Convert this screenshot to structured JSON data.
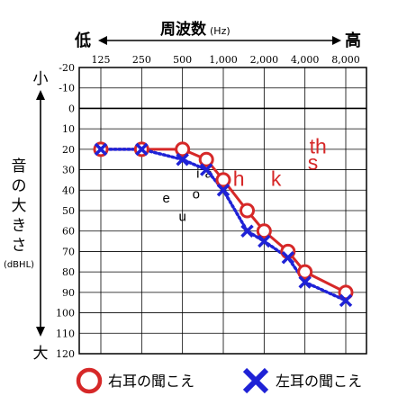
{
  "title_freq": "周波数",
  "title_freq_unit": "(Hz)",
  "freq_low_label": "低",
  "freq_high_label": "高",
  "y_title_chars": [
    "音",
    "の",
    "大",
    "き",
    "さ"
  ],
  "y_unit": "(dBHL)",
  "y_top_label": "小",
  "y_bottom_label": "大",
  "legend": {
    "right": "右耳の聞こえ",
    "left": "左耳の聞こえ"
  },
  "colors": {
    "right_ear": "#d62828",
    "left_ear": "#1f22d6",
    "grid": "#000000"
  },
  "chart_data": {
    "type": "line",
    "title": "",
    "xlabel": "周波数 (Hz)",
    "ylabel": "音の大きさ (dBHL)",
    "x_scale": "log",
    "y_inverted": true,
    "ylim": [
      -20,
      120
    ],
    "y_ticks": [
      -20,
      -10,
      0,
      10,
      20,
      30,
      40,
      50,
      60,
      70,
      80,
      90,
      100,
      110,
      120
    ],
    "x_ticks": [
      {
        "value": 125,
        "label": "125"
      },
      {
        "value": 250,
        "label": "250"
      },
      {
        "value": 500,
        "label": "500"
      },
      {
        "value": 1000,
        "label": "1,000"
      },
      {
        "value": 2000,
        "label": "2,000"
      },
      {
        "value": 4000,
        "label": "4,000"
      },
      {
        "value": 8000,
        "label": "8,000"
      }
    ],
    "grid": true,
    "legend_position": "bottom",
    "series": [
      {
        "name": "右耳の聞こえ",
        "marker": "circle",
        "line": "solid",
        "x": [
          125,
          250,
          500,
          750,
          1000,
          1500,
          2000,
          3000,
          4000,
          8000
        ],
        "y": [
          20,
          20,
          20,
          25,
          35,
          50,
          60,
          70,
          80,
          90
        ]
      },
      {
        "name": "左耳の聞こえ",
        "marker": "x",
        "line": "dotted",
        "x": [
          125,
          250,
          500,
          750,
          1000,
          1500,
          2000,
          3000,
          4000,
          8000
        ],
        "y": [
          20,
          20,
          25,
          30,
          40,
          60,
          65,
          73,
          85,
          94
        ]
      }
    ],
    "annotations": [
      {
        "text": "e",
        "x": 380,
        "y": 46,
        "color": "#000000"
      },
      {
        "text": "u",
        "x": 500,
        "y": 55,
        "color": "#000000"
      },
      {
        "text": "o",
        "x": 630,
        "y": 44,
        "color": "#000000"
      },
      {
        "text": "i",
        "x": 650,
        "y": 34,
        "color": "#000000"
      },
      {
        "text": "a",
        "x": 780,
        "y": 34,
        "color": "#000000"
      },
      {
        "text": "h",
        "x": 1300,
        "y": 38,
        "color": "#d62828"
      },
      {
        "text": "k",
        "x": 2450,
        "y": 38,
        "color": "#d62828"
      },
      {
        "text": "s",
        "x": 4580,
        "y": 30,
        "color": "#d62828"
      },
      {
        "text": "th",
        "x": 5000,
        "y": 22,
        "color": "#d62828"
      }
    ]
  }
}
